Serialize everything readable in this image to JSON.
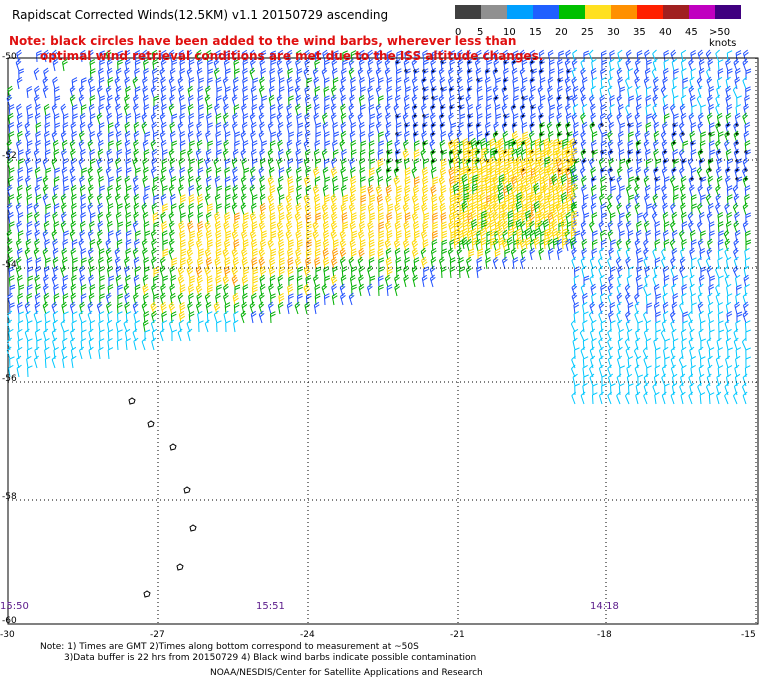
{
  "title": "Rapidscat Corrected Winds(12.5KM) v1.1 20150729 ascending",
  "notes": [
    "Note: black circles have been added to the wind barbs, wherever less than",
    "optimal wind retrieval conditions are met due to the ISS altitude changes."
  ],
  "colorbar": {
    "labels": [
      "0",
      "5",
      "10",
      "15",
      "20",
      "25",
      "30",
      "35",
      "40",
      "45",
      ">50 knots"
    ],
    "colors": [
      "#404040",
      "#909090",
      "#00a0ff",
      "#2060ff",
      "#00c000",
      "#ffe020",
      "#ff9000",
      "#ff2000",
      "#a02020",
      "#c000c0",
      "#400080"
    ]
  },
  "map": {
    "lat_labels": [
      "-50",
      "-52",
      "-54",
      "-56",
      "-58",
      "-60"
    ],
    "lon_labels": [
      "-30",
      "-27",
      "-24",
      "-21",
      "-18",
      "-15"
    ],
    "time_labels": [
      "15:50",
      "15:51",
      "14:18"
    ]
  },
  "footer": {
    "line1": "Note: 1) Times are GMT 2)Times along bottom correspond to measurement at ~50S",
    "line2": "3)Data buffer is 22 hrs from 20150729 4) Black wind barbs indicate possible contamination",
    "line3": "NOAA/NESDIS/Center for Satellite Applications and Research"
  }
}
